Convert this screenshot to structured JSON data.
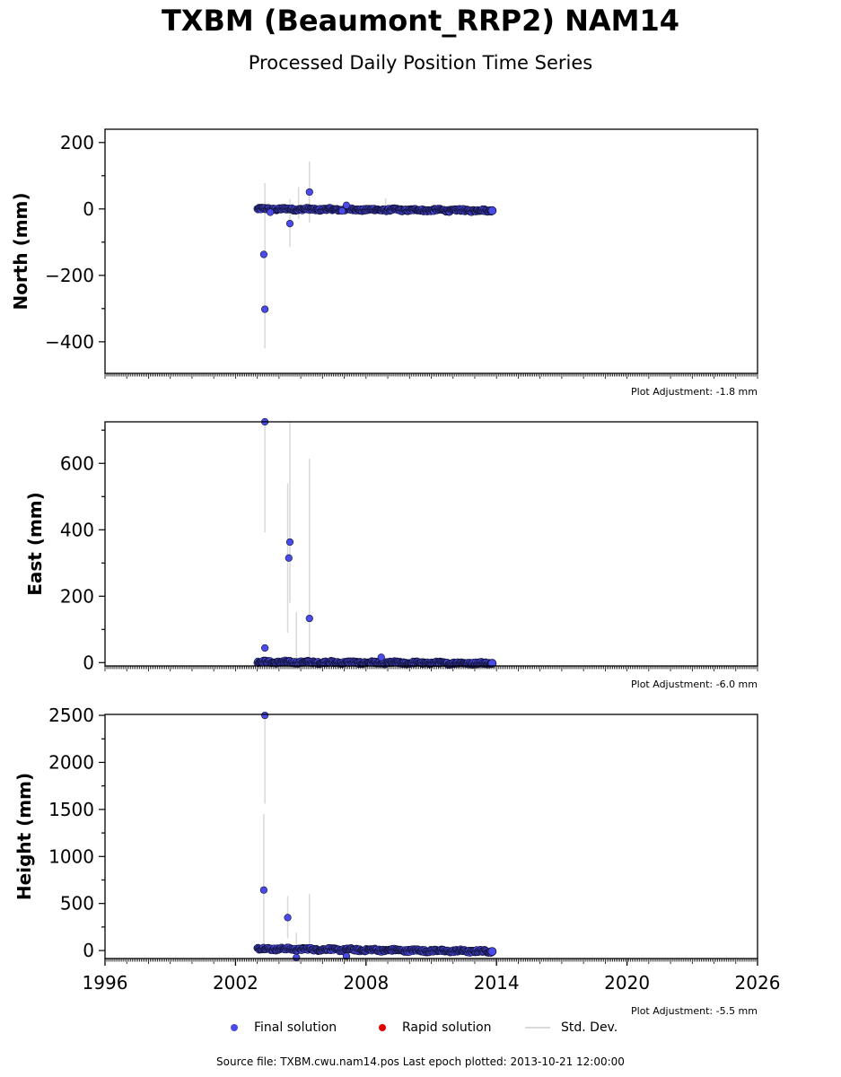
{
  "title": "TXBM (Beaumont_RRP2) NAM14",
  "subtitle": "Processed Daily Position Time Series",
  "legend": {
    "final": "Final solution",
    "rapid": "Rapid solution",
    "stddev": "Std. Dev."
  },
  "footer": "Source file: TXBM.cwu.nam14.pos  Last epoch plotted: 2013-10-21 12:00:00",
  "colors": {
    "final": "#4b4bea",
    "rapid": "#e00000",
    "stddev": "#d9d9d9",
    "axis": "#000000"
  },
  "chart_data": [
    {
      "type": "scatter",
      "ylabel": "North (mm)",
      "xlim": [
        1996,
        2026
      ],
      "ylim": [
        -495,
        240
      ],
      "yticks": [
        200,
        0,
        -200,
        -400
      ],
      "ytick_labels": [
        "200",
        "0",
        "−200",
        "−400"
      ],
      "adjustment": "Plot Adjustment: -1.8 mm",
      "x_tick_labels_shown": false,
      "outliers": [
        {
          "x": 2003.3,
          "y": -137,
          "err": 0
        },
        {
          "x": 2003.35,
          "y": -302,
          "err": 118
        },
        {
          "x": 2003.6,
          "y": -10,
          "err": 0
        },
        {
          "x": 2004.5,
          "y": -44,
          "err": 70
        },
        {
          "x": 2005.4,
          "y": 51,
          "err": 92
        },
        {
          "x": 2006.9,
          "y": -6,
          "err": 0
        },
        {
          "x": 2007.1,
          "y": 11,
          "err": 0
        }
      ],
      "errbars": [
        {
          "x": 2003.35,
          "low": -420,
          "high": 78
        },
        {
          "x": 2004.5,
          "low": -115,
          "high": 30
        },
        {
          "x": 2004.9,
          "low": -30,
          "high": 66
        },
        {
          "x": 2005.4,
          "low": -41,
          "high": 143
        },
        {
          "x": 2008.9,
          "low": -20,
          "high": 32
        }
      ],
      "band": {
        "start": 2003.0,
        "end": 2013.8,
        "start_value": 0,
        "end_value": -5,
        "wobble": 4
      }
    },
    {
      "type": "scatter",
      "ylabel": "East (mm)",
      "xlim": [
        1996,
        2026
      ],
      "ylim": [
        -10,
        725
      ],
      "yticks": [
        0,
        200,
        400,
        600
      ],
      "ytick_labels": [
        "0",
        "200",
        "400",
        "600"
      ],
      "adjustment": "Plot Adjustment: -6.0 mm",
      "x_tick_labels_shown": false,
      "outliers": [
        {
          "x": 2003.35,
          "y": 725,
          "err": 0
        },
        {
          "x": 2003.35,
          "y": 44,
          "err": 90
        },
        {
          "x": 2004.45,
          "y": 315,
          "err": 0
        },
        {
          "x": 2004.5,
          "y": 363,
          "err": 180
        },
        {
          "x": 2005.4,
          "y": 133,
          "err": 0
        },
        {
          "x": 2008.7,
          "y": 16,
          "err": 0
        }
      ],
      "errbars": [
        {
          "x": 2003.35,
          "low": 392,
          "high": 725
        },
        {
          "x": 2004.4,
          "low": 90,
          "high": 540
        },
        {
          "x": 2004.5,
          "low": 180,
          "high": 725
        },
        {
          "x": 2004.8,
          "low": -5,
          "high": 152
        },
        {
          "x": 2005.4,
          "low": -5,
          "high": 614
        }
      ],
      "band": {
        "start": 2003.0,
        "end": 2013.8,
        "start_value": 2,
        "end_value": -2,
        "wobble": 4
      }
    },
    {
      "type": "scatter",
      "ylabel": "Height (mm)",
      "xlim": [
        1996,
        2026
      ],
      "ylim": [
        -85,
        2510
      ],
      "yticks": [
        0,
        500,
        1000,
        1500,
        2000,
        2500
      ],
      "ytick_labels": [
        "0",
        "500",
        "1000",
        "1500",
        "2000",
        "2500"
      ],
      "xticks": [
        1996,
        2002,
        2008,
        2014,
        2020,
        2026
      ],
      "xtick_labels": [
        "1996",
        "2002",
        "2008",
        "2014",
        "2020",
        "2026"
      ],
      "adjustment": "Plot Adjustment: -5.5 mm",
      "x_tick_labels_shown": true,
      "outliers": [
        {
          "x": 2003.35,
          "y": 2500,
          "err": 0
        },
        {
          "x": 2003.3,
          "y": 643,
          "err": 0
        },
        {
          "x": 2004.4,
          "y": 350,
          "err": 0
        },
        {
          "x": 2004.8,
          "y": -75,
          "err": 0
        },
        {
          "x": 2007.1,
          "y": -60,
          "err": 0
        }
      ],
      "errbars": [
        {
          "x": 2003.35,
          "low": 1560,
          "high": 2500
        },
        {
          "x": 2003.3,
          "low": -20,
          "high": 1450
        },
        {
          "x": 2004.4,
          "low": 130,
          "high": 580
        },
        {
          "x": 2004.8,
          "low": -30,
          "high": 190
        },
        {
          "x": 2005.4,
          "low": -10,
          "high": 600
        }
      ],
      "band": {
        "start": 2003.0,
        "end": 2013.8,
        "start_value": 20,
        "end_value": -10,
        "wobble": 15
      }
    }
  ]
}
